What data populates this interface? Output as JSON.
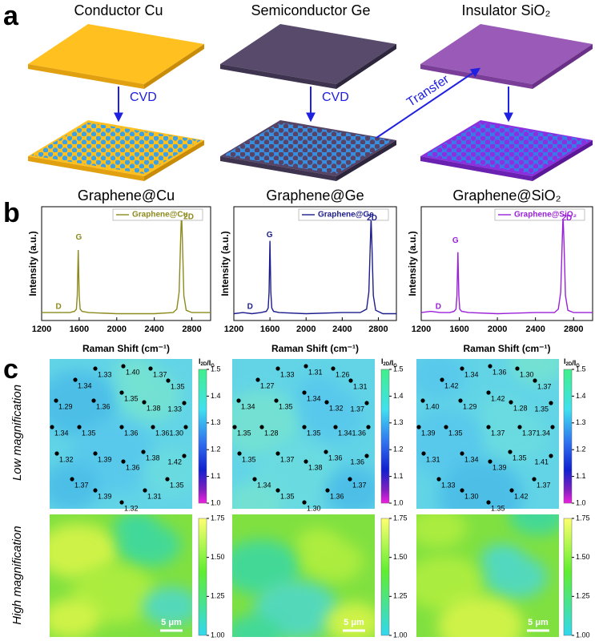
{
  "panel_labels": [
    "a",
    "b",
    "c"
  ],
  "panel_a": {
    "titles": [
      "Conductor Cu",
      "Semiconductor Ge",
      "Insulator SiO₂"
    ],
    "arrow_labels": [
      "CVD",
      "CVD",
      "Transfer"
    ]
  },
  "chart_data": [
    {
      "type": "line",
      "title": "Graphene@Cu",
      "x_label": "Raman Shift (cm⁻¹)",
      "y_label": "Intensity (a.u.)",
      "x": [
        1200,
        1300,
        1400,
        1500,
        1550,
        1570,
        1580,
        1590,
        1600,
        1610,
        1630,
        1700,
        2000,
        2400,
        2600,
        2640,
        2665,
        2680,
        2690,
        2700,
        2715,
        2740,
        2800,
        3000
      ],
      "series": [
        {
          "name": "Graphene@Cu",
          "color": "#8c8a1c",
          "values": [
            0.07,
            0.07,
            0.07,
            0.07,
            0.08,
            0.1,
            0.22,
            0.62,
            0.22,
            0.1,
            0.08,
            0.07,
            0.06,
            0.06,
            0.07,
            0.1,
            0.25,
            0.7,
            0.95,
            0.7,
            0.22,
            0.09,
            0.07,
            0.07
          ]
        }
      ],
      "annotations": [
        "D",
        "G",
        "2D"
      ],
      "legend": "upper right",
      "xlim": [
        1200,
        3000
      ],
      "ylim": [
        0,
        1
      ],
      "xticks": [
        1200,
        1600,
        2000,
        2400,
        2800
      ]
    },
    {
      "type": "line",
      "title": "Graphene@Ge",
      "x_label": "Raman Shift (cm⁻¹)",
      "y_label": "Intensity (a.u.)",
      "x": [
        1200,
        1300,
        1400,
        1500,
        1560,
        1580,
        1590,
        1600,
        1610,
        1620,
        1640,
        1700,
        2000,
        2400,
        2600,
        2670,
        2695,
        2710,
        2720,
        2730,
        2745,
        2770,
        2850,
        3000
      ],
      "series": [
        {
          "name": "Graphene@Ge",
          "color": "#1c1c8c",
          "values": [
            0.06,
            0.07,
            0.06,
            0.07,
            0.08,
            0.11,
            0.25,
            0.7,
            0.25,
            0.11,
            0.08,
            0.07,
            0.06,
            0.07,
            0.07,
            0.1,
            0.25,
            0.65,
            0.9,
            0.65,
            0.22,
            0.09,
            0.06,
            0.06
          ]
        }
      ],
      "annotations": [
        "D",
        "G",
        "2D"
      ],
      "legend": "upper right",
      "xlim": [
        1200,
        3000
      ],
      "ylim": [
        0,
        1
      ],
      "xticks": [
        1200,
        1600,
        2000,
        2400,
        2800
      ]
    },
    {
      "type": "line",
      "title": "Graphene@SiO₂",
      "x_label": "Raman Shift (cm⁻¹)",
      "y_label": "Intensity (a.u.)",
      "x": [
        1200,
        1300,
        1400,
        1500,
        1545,
        1565,
        1575,
        1585,
        1595,
        1605,
        1625,
        1700,
        2000,
        2400,
        2600,
        2640,
        2665,
        2680,
        2690,
        2700,
        2715,
        2740,
        2800,
        3000
      ],
      "series": [
        {
          "name": "Graphene@SiO₂",
          "color": "#9a20d8",
          "values": [
            0.07,
            0.08,
            0.07,
            0.07,
            0.08,
            0.1,
            0.22,
            0.6,
            0.22,
            0.1,
            0.08,
            0.07,
            0.06,
            0.07,
            0.07,
            0.1,
            0.25,
            0.68,
            0.93,
            0.68,
            0.22,
            0.09,
            0.07,
            0.07
          ]
        }
      ],
      "annotations": [
        "D",
        "G",
        "2D"
      ],
      "legend": "upper right",
      "xlim": [
        1200,
        3000
      ],
      "ylim": [
        0,
        1
      ],
      "xticks": [
        1200,
        1600,
        2000,
        2400,
        2800
      ]
    }
  ],
  "panel_c": {
    "row_labels": [
      "Low magnification",
      "High magnification"
    ],
    "colorbar_label": {
      "symbol": "I",
      "sub1": "2D",
      "sep": "/I",
      "sub2": "G"
    },
    "scale_bar": "5 μm",
    "low": {
      "lim": [
        1,
        1.5
      ],
      "ticks": [
        {
          "value": 1,
          "label": "1.0"
        },
        1.1,
        1.2,
        1.3,
        1.4,
        1.5
      ]
    },
    "high": {
      "lim": [
        1,
        1.75
      ],
      "ticks": [
        {
          "value": 1,
          "label": "1.00"
        },
        {
          "value": 1.25,
          "label": "1.25"
        },
        {
          "value": 1.5,
          "label": "1.50"
        },
        1.75
      ]
    },
    "maps": [
      {
        "points": [
          "1.40",
          "1.33",
          "1.37",
          "1.34",
          "1.35",
          "1.35",
          "1.29",
          "1.36",
          "1.38",
          "1.33",
          "1.34",
          "1.35",
          "1.36",
          "1.36",
          "1.30",
          "1.32",
          "1.39",
          "1.38",
          "1.42",
          "1.36",
          "1.37",
          "1.35",
          "1.39",
          "1.31",
          "1.32"
        ]
      },
      {
        "points": [
          "1.31",
          "1.33",
          "1.26",
          "1.27",
          "1.31",
          "1.34",
          "1.34",
          "1.35",
          "1.32",
          "1.37",
          "1.35",
          "1.28",
          "1.35",
          "1.34",
          "1.36",
          "1.35",
          "1.37",
          "1.36",
          "1.36",
          "1.38",
          "1.34",
          "1.37",
          "1.35",
          "1.36",
          "1.30"
        ]
      },
      {
        "points": [
          "1.36",
          "1.34",
          "1.30",
          "1.42",
          "1.37",
          "1.42",
          "1.40",
          "1.29",
          "1.28",
          "1.35",
          "1.39",
          "1.35",
          "1.37",
          "1.37",
          "1.34",
          "1.31",
          "1.34",
          "1.35",
          "1.41",
          "1.39",
          "1.33",
          "1.37",
          "1.30",
          "1.42",
          "1.35"
        ]
      }
    ]
  }
}
